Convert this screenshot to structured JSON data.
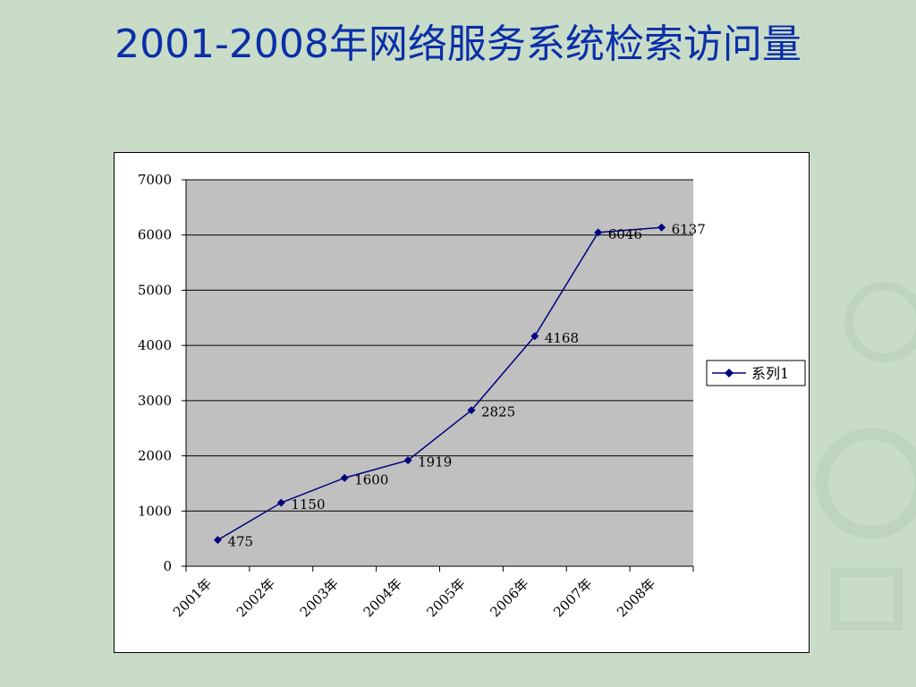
{
  "slide": {
    "title": "2001-2008年网络服务系统检索访问量"
  },
  "colors": {
    "background": "#c9dcc8",
    "title": "#0a2fa8",
    "series_line": "#00007f",
    "plot_area": "#c0c0c0"
  },
  "chart_data": {
    "type": "line",
    "title": "",
    "xlabel": "",
    "ylabel": "",
    "categories": [
      "2001年",
      "2002年",
      "2003年",
      "2004年",
      "2005年",
      "2006年",
      "2007年",
      "2008年"
    ],
    "series": [
      {
        "name": "系列1",
        "values": [
          475,
          1150,
          1600,
          1919,
          2825,
          4168,
          6046,
          6137
        ]
      }
    ],
    "ylim": [
      0,
      7000
    ],
    "y_ticks": [
      0,
      1000,
      2000,
      3000,
      4000,
      5000,
      6000,
      7000
    ],
    "grid": true,
    "data_labels": true,
    "legend_position": "right"
  }
}
